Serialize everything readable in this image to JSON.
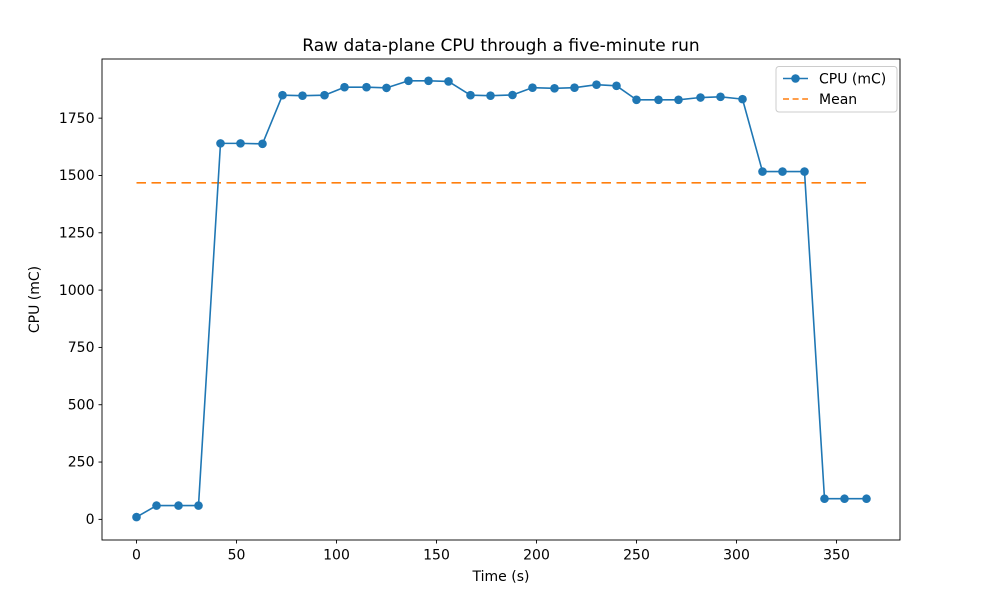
{
  "figure": {
    "title": "Raw data-plane CPU through a five-minute run"
  },
  "chart_data": {
    "type": "line",
    "title": "Raw data-plane CPU through a five-minute run",
    "xlabel": "Time (s)",
    "ylabel": "CPU (mC)",
    "x": [
      0,
      10,
      21,
      31,
      42,
      52,
      63,
      73,
      83,
      94,
      104,
      115,
      125,
      136,
      146,
      156,
      167,
      177,
      188,
      198,
      209,
      219,
      230,
      240,
      250,
      261,
      271,
      282,
      292,
      303,
      313,
      323,
      334,
      344,
      354,
      365
    ],
    "series": [
      {
        "name": "CPU (mC)",
        "color": "#1f77b4",
        "marker": "circle",
        "values": [
          10,
          60,
          60,
          60,
          1640,
          1640,
          1638,
          1850,
          1848,
          1850,
          1885,
          1885,
          1882,
          1913,
          1913,
          1910,
          1850,
          1848,
          1851,
          1883,
          1880,
          1883,
          1896,
          1891,
          1830,
          1830,
          1830,
          1840,
          1843,
          1833,
          1517,
          1517,
          1517,
          90,
          90,
          90
        ]
      },
      {
        "name": "Mean",
        "color": "#ff7f0e",
        "linestyle": "dashed",
        "value": 1468.1,
        "x_span": [
          0,
          365
        ]
      }
    ],
    "xticks": [
      0,
      50,
      100,
      150,
      200,
      250,
      300,
      350
    ],
    "yticks": [
      0,
      250,
      500,
      750,
      1000,
      1250,
      1500,
      1750
    ],
    "xlim": [
      -17.25,
      381.75
    ],
    "ylim": [
      -90,
      2008
    ],
    "grid": false,
    "legend": {
      "position": "upper right",
      "entries": [
        "CPU (mC)",
        "Mean"
      ]
    }
  }
}
